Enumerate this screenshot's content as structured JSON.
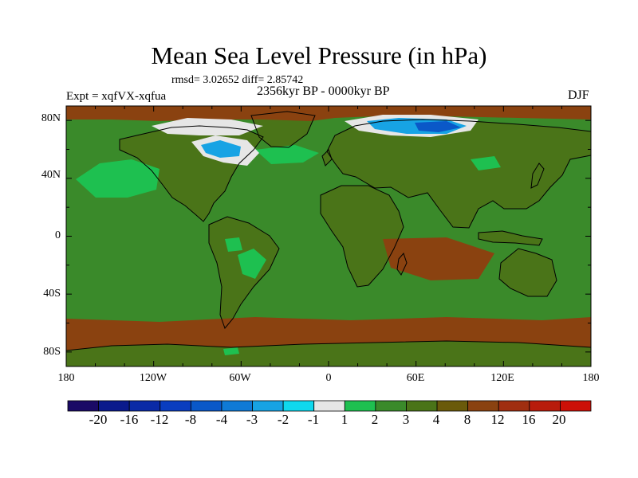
{
  "title": "Mean Sea Level Pressure (in hPa)",
  "stats": "rmsd= 3.02652 diff= 2.85742",
  "expt": "Expt = xqfVX-xqfua",
  "period": "2356kyr BP - 0000kyr BP",
  "season": "DJF",
  "latitude_labels": [
    "80N",
    "40N",
    "0",
    "40S",
    "80S"
  ],
  "longitude_labels": [
    "180",
    "120W",
    "60W",
    "0",
    "60E",
    "120E",
    "180"
  ],
  "colorbar": {
    "labels": [
      "-20",
      "-16",
      "-12",
      "-8",
      "-4",
      "-3",
      "-2",
      "-1",
      "1",
      "2",
      "3",
      "4",
      "8",
      "12",
      "16",
      "20"
    ],
    "colors": [
      "#1a0a66",
      "#0b1a8c",
      "#0a2aa6",
      "#0a3dbf",
      "#0a58c8",
      "#0f7ad6",
      "#17a3e4",
      "#0fd8ee",
      "#e6e6e6",
      "#1ec050",
      "#3a8a2a",
      "#4a7418",
      "#6a5a0a",
      "#8a4210",
      "#a02e10",
      "#b81c0c",
      "#cc1008"
    ]
  },
  "map": {
    "land_color": "#4a7418",
    "ocean_color": "#3a8a2a",
    "high_anomaly_color": "#8a4210",
    "low_anomaly_color": "#0a58c8",
    "coast_color": "#000000"
  }
}
